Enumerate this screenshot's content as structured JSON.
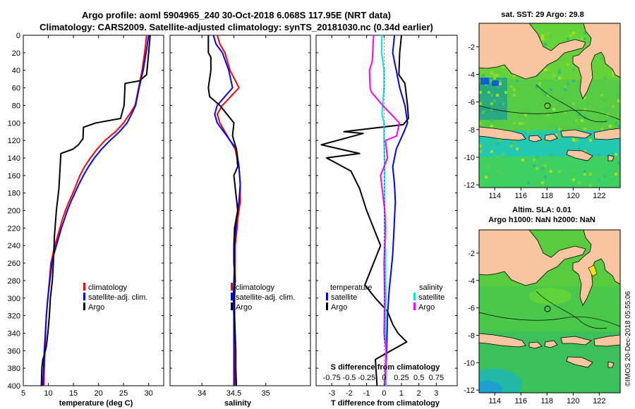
{
  "header": {
    "title1": "Argo profile: aoml 5904965_240 30-Oct-2018 6.068S 117.95E (NRT data)",
    "title2": "Climatology: CARS2009. Satellite-adjusted climatology: synTS_20181030.nc (0.34d earlier)"
  },
  "depth_axis": {
    "ticks": [
      0,
      20,
      40,
      60,
      80,
      100,
      120,
      140,
      160,
      180,
      200,
      220,
      240,
      260,
      280,
      300,
      320,
      340,
      360,
      380,
      400
    ]
  },
  "colors": {
    "climatology": "#ff0000",
    "satellite": "#0000ff",
    "argo": "#000000",
    "sat_sal": "#00e5ee",
    "argo_sal": "#ff00ff",
    "land": "#f7c59f"
  },
  "chart_data": [
    {
      "type": "line",
      "name": "temperature-panel",
      "xlabel": "temperature (deg C)",
      "xlim": [
        5,
        33
      ],
      "ylim": [
        0,
        400
      ],
      "xticks": [
        5,
        10,
        15,
        20,
        25,
        30
      ],
      "legend": [
        "climatology",
        "satellite-adj. clim.",
        "Argo"
      ],
      "series": [
        {
          "name": "climatology",
          "color": "#ff0000",
          "x": [
            29.6,
            29.2,
            28.7,
            28,
            27.3,
            26.2,
            25,
            23.4,
            21.3,
            19.7,
            18.4,
            17.2,
            16.3,
            15.6,
            14.9,
            14.1,
            13.4,
            12.8,
            12.3,
            11.8,
            11.3,
            10.9,
            10.5,
            10.2,
            9.9,
            9.6,
            9.3,
            9.1
          ],
          "y": [
            0,
            20,
            40,
            60,
            80,
            90,
            100,
            110,
            120,
            130,
            140,
            150,
            160,
            170,
            180,
            190,
            200,
            210,
            220,
            230,
            240,
            250,
            260,
            280,
            300,
            320,
            360,
            400
          ]
        },
        {
          "name": "satellite-adj. clim.",
          "color": "#0000ff",
          "x": [
            30,
            29.5,
            28.9,
            28.1,
            27.4,
            26.6,
            25.7,
            24.2,
            22.3,
            20.6,
            19.2,
            18,
            17,
            16.1,
            15.3,
            14.5,
            13.8,
            13.2,
            12.6,
            12.1,
            11.6,
            11.1,
            10.7,
            10.3,
            9.9,
            9.6,
            9.2,
            8.9
          ],
          "y": [
            0,
            20,
            40,
            60,
            80,
            90,
            100,
            110,
            120,
            130,
            140,
            150,
            160,
            170,
            180,
            190,
            200,
            210,
            220,
            230,
            240,
            250,
            260,
            280,
            300,
            320,
            360,
            400
          ]
        },
        {
          "name": "Argo",
          "color": "#000000",
          "x": [
            30.3,
            30,
            29.6,
            28.2,
            25.3,
            25.1,
            24.4,
            19.5,
            17,
            16.9,
            16,
            14.9,
            12.5,
            12.4,
            12.1,
            11.6,
            11.4,
            11.2,
            11,
            10.8,
            10.4,
            10.2,
            9.9,
            9.6,
            9.2,
            8.9,
            8.7,
            8.6
          ],
          "y": [
            0,
            20,
            45,
            52,
            55,
            80,
            95,
            100,
            105,
            118,
            125,
            130,
            135,
            145,
            175,
            200,
            215,
            230,
            260,
            280,
            300,
            320,
            340,
            355,
            365,
            370,
            380,
            400
          ]
        }
      ]
    },
    {
      "type": "line",
      "name": "salinity-panel",
      "xlabel": "salinity",
      "xlim": [
        33.5,
        35.7
      ],
      "ylim": [
        0,
        400
      ],
      "xticks": [
        34,
        34.5,
        35
      ],
      "legend": [
        "climatology",
        "satellite-adj. clim.",
        "Argo"
      ],
      "series": [
        {
          "name": "climatology",
          "color": "#ff0000",
          "x": [
            34.24,
            34.28,
            34.36,
            34.44,
            34.58,
            34.32,
            34.24,
            34.28,
            34.36,
            34.44,
            34.52,
            34.58,
            34.6,
            34.6,
            34.56,
            34.55,
            34.52,
            34.52,
            34.52,
            34.5,
            34.51,
            34.52,
            34.52
          ],
          "y": [
            0,
            10,
            20,
            40,
            60,
            80,
            90,
            100,
            110,
            120,
            130,
            150,
            170,
            190,
            210,
            220,
            240,
            260,
            280,
            300,
            320,
            360,
            400
          ]
        },
        {
          "name": "satellite-adj. clim.",
          "color": "#0000ff",
          "x": [
            34.18,
            34.22,
            34.32,
            34.42,
            34.48,
            34.24,
            34.2,
            34.24,
            34.34,
            34.44,
            34.54,
            34.58,
            34.6,
            34.58,
            34.54,
            34.53,
            34.51,
            34.51,
            34.5,
            34.49,
            34.5,
            34.5,
            34.5
          ],
          "y": [
            0,
            10,
            20,
            40,
            60,
            80,
            90,
            100,
            110,
            120,
            130,
            150,
            170,
            190,
            210,
            220,
            240,
            260,
            280,
            300,
            320,
            360,
            400
          ]
        },
        {
          "name": "Argo",
          "color": "#000000",
          "x": [
            34.1,
            34.1,
            34.14,
            34.14,
            34.1,
            34.12,
            34.28,
            34.5,
            34.48,
            34.54,
            34.56,
            34.5,
            34.53,
            34.56,
            34.51,
            34.5,
            34.5,
            34.52,
            34.51,
            34.51,
            34.52,
            34.53,
            34.53,
            34.54
          ],
          "y": [
            0,
            20,
            25,
            40,
            60,
            70,
            80,
            100,
            115,
            130,
            150,
            160,
            180,
            200,
            220,
            240,
            260,
            280,
            300,
            320,
            340,
            360,
            380,
            400
          ]
        }
      ]
    },
    {
      "type": "line",
      "name": "difference-panel",
      "xlabel": "T difference from climatology",
      "xlabel2": "S difference from climatology",
      "xlim": [
        -3.9,
        4.2
      ],
      "ylim": [
        0,
        400
      ],
      "xticks": [
        -3,
        -2,
        -1,
        0,
        1,
        2,
        3
      ],
      "xticks2": [
        -0.75,
        -0.5,
        -0.25,
        0,
        0.25,
        0.5,
        0.75
      ],
      "legend_temperature": {
        "title": "temperature",
        "items": [
          "satellite",
          "Argo"
        ]
      },
      "legend_salinity": {
        "title": "salinity",
        "items": [
          "satellite",
          "Argo"
        ]
      },
      "series": [
        {
          "name": "T satellite",
          "color": "#0000ff",
          "x": [
            0.6,
            0.5,
            0.7,
            0.9,
            1.2,
            1.35,
            1.15,
            0.7,
            0.5,
            0.6,
            0.65,
            0.6,
            0.55,
            0.5,
            0.4,
            0.3,
            0.2,
            0.15,
            0.1
          ],
          "y": [
            0,
            20,
            40,
            60,
            80,
            100,
            110,
            130,
            150,
            170,
            190,
            210,
            230,
            250,
            270,
            290,
            320,
            360,
            400
          ]
        },
        {
          "name": "T Argo",
          "color": "#000000",
          "x": [
            1,
            0.9,
            0.85,
            1.2,
            1.35,
            1.4,
            1.1,
            -2.3,
            -1.2,
            -3.6,
            -1.4,
            -3.3,
            -1.9,
            -1.4,
            -1,
            -0.6,
            -0.2,
            -0.7,
            -1.1,
            -0.5,
            0.2,
            0.5,
            0.8,
            1.3,
            0.4,
            -0.5,
            -0.4
          ],
          "y": [
            0,
            20,
            45,
            55,
            80,
            95,
            102,
            110,
            112,
            125,
            135,
            140,
            155,
            175,
            200,
            220,
            240,
            265,
            285,
            300,
            315,
            330,
            340,
            350,
            360,
            370,
            400
          ]
        },
        {
          "name": "S satellite",
          "color": "#00e5ee",
          "x": [
            -0.03,
            -0.035,
            0,
            0,
            -0.02,
            -0.03,
            0,
            0,
            0.01,
            0.01,
            0.01,
            0.01,
            0.02,
            0.02,
            0.03,
            0.02,
            0.02,
            0.03,
            0.03
          ],
          "y": [
            0,
            20,
            40,
            60,
            80,
            90,
            100,
            120,
            150,
            180,
            200,
            220,
            250,
            280,
            300,
            320,
            340,
            360,
            400
          ]
        },
        {
          "name": "S Argo",
          "color": "#ff00ff",
          "x": [
            -0.15,
            -0.17,
            -0.21,
            -0.2,
            -0.18,
            -0.02,
            0.22,
            0.18,
            0.02,
            0.05,
            -0.05,
            -0.02,
            0.01,
            0.02,
            0,
            0.01,
            0,
            0.03,
            0.01
          ],
          "y": [
            0,
            30,
            40,
            60,
            65,
            80,
            100,
            115,
            120,
            140,
            160,
            180,
            200,
            220,
            260,
            300,
            340,
            360,
            400
          ]
        }
      ]
    },
    {
      "type": "heatmap",
      "name": "sst-map",
      "title": "sat. SST: 29 Argo: 29.8",
      "xticks": [
        114,
        116,
        118,
        120,
        122
      ],
      "yticks": [
        -2,
        -4,
        -6,
        -8,
        -10,
        -12
      ],
      "xlim": [
        112.8,
        123.6
      ],
      "ylim": [
        -12.2,
        -0.3
      ]
    },
    {
      "type": "heatmap",
      "name": "sla-map",
      "title": "Altim. SLA: 0.01",
      "subtitle": "Argo h1000: NaN h2000: NaN",
      "xticks": [
        114,
        116,
        118,
        120,
        122
      ],
      "yticks": [
        -2,
        -4,
        -6,
        -8,
        -10,
        -12
      ],
      "xlim": [
        112.8,
        123.6
      ],
      "ylim": [
        -12.2,
        -0.3
      ]
    }
  ],
  "footer": {
    "credit": "©IMOS 20-Dec-2018 05:55:06"
  }
}
